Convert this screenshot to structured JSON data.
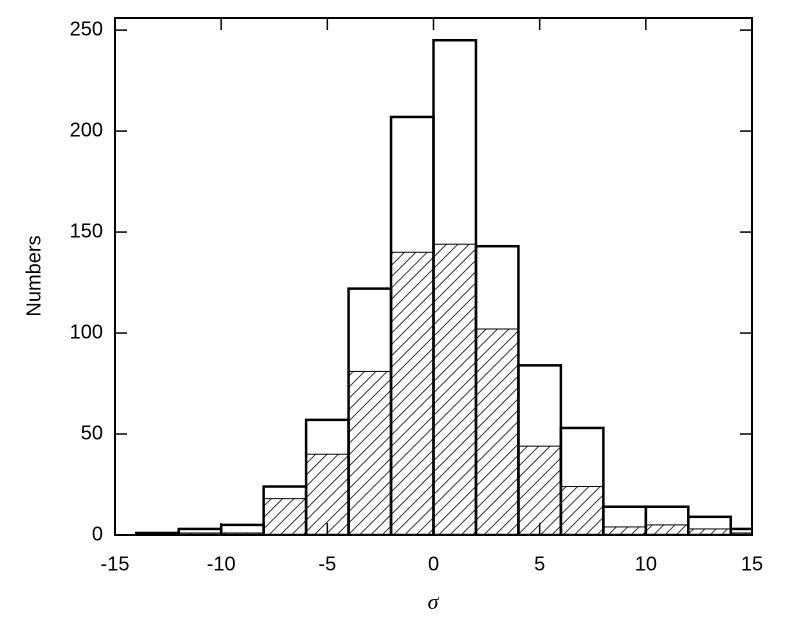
{
  "chart_data": {
    "type": "histogram",
    "x_label": "σ",
    "y_label": "Numbers",
    "bins": [
      -14,
      -12,
      -10,
      -8,
      -6,
      -4,
      -2,
      0,
      2,
      4,
      6,
      8,
      10,
      12,
      14,
      16
    ],
    "series": [
      {
        "color": "#000000",
        "hatch": false,
        "values": [
          1,
          3,
          5,
          24,
          57,
          122,
          207,
          245,
          143,
          84,
          53,
          14,
          14,
          9,
          3
        ]
      },
      {
        "color": "#000000",
        "hatch": true,
        "values": [
          0,
          1,
          1,
          18,
          40,
          81,
          140,
          144,
          102,
          44,
          24,
          4,
          5,
          3,
          1
        ]
      }
    ],
    "xlim": [
      -15,
      15
    ],
    "xticks": [
      -15,
      -10,
      -5,
      0,
      5,
      10,
      15
    ],
    "ylim": [
      0,
      256
    ],
    "yticks": [
      0,
      50,
      100,
      150,
      200,
      250
    ]
  }
}
